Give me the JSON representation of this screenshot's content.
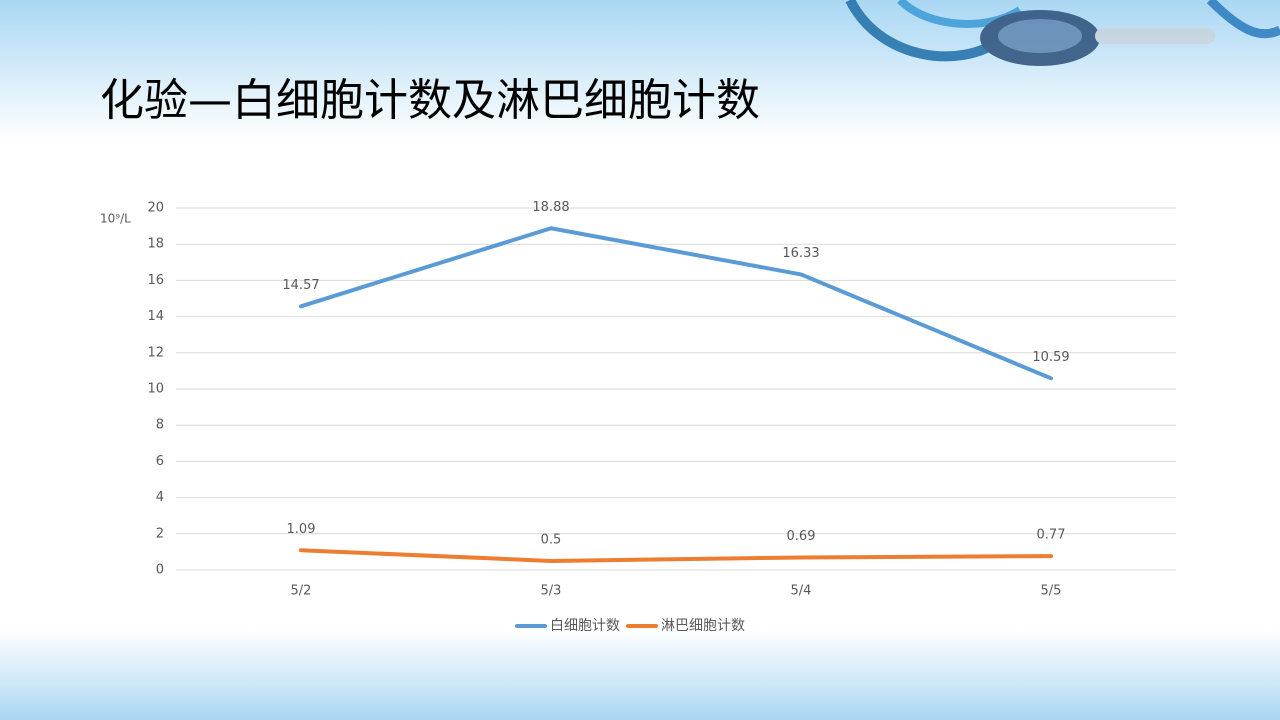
{
  "chart_data": {
    "type": "line",
    "title": "化验—白细胞计数及淋巴细胞计数",
    "y_label": "10⁹/L",
    "categories": [
      "5/2",
      "5/3",
      "5/4",
      "5/5"
    ],
    "series": [
      {
        "name": "白细胞计数",
        "color": "#5b9bd5",
        "values": [
          14.57,
          18.88,
          16.33,
          10.59
        ]
      },
      {
        "name": "淋巴细胞计数",
        "color": "#ed7d31",
        "values": [
          1.09,
          0.5,
          0.69,
          0.77
        ]
      }
    ],
    "ylim": [
      0,
      20
    ],
    "yticks": [
      0,
      2,
      4,
      6,
      8,
      10,
      12,
      14,
      16,
      18,
      20
    ],
    "grid": true,
    "legend": "bottom"
  }
}
